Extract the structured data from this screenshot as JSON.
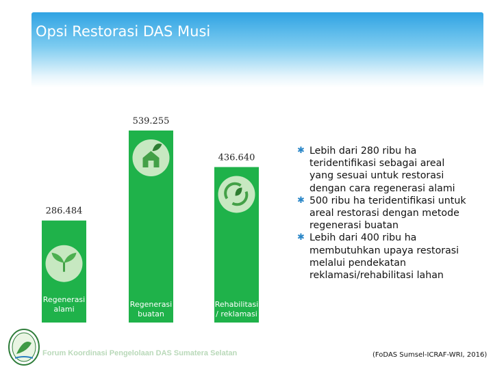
{
  "slide": {
    "title": "Opsi Restorasi DAS Musi",
    "footer_org": "Forum Koordinasi Pengelolaan DAS Sumatera Selatan",
    "source": "(FoDAS Sumsel-ICRAF-WRI, 2016)"
  },
  "bullets": [
    "Lebih dari 280 ribu ha teridentifikasi sebagai areal yang sesuai untuk restorasi dengan cara regenerasi alami",
    "500 ribu ha teridentifikasi untuk areal restorasi dengan metode regenerasi buatan",
    "Lebih dari 400 ribu ha membutuhkan upaya restorasi melalui pendekatan reklamasi/rehabilitasi lahan"
  ],
  "chart_data": {
    "type": "bar",
    "categories": [
      "Regenerasi alami",
      "Regenerasi buatan",
      "Rehabilitasi / reklamasi"
    ],
    "values": [
      286484,
      539255,
      436640
    ],
    "value_labels": [
      "286.484",
      "539.255",
      "436.640"
    ],
    "bar_color": "#1fb24a",
    "icons": [
      "seedling-icon",
      "house-leaf-icon",
      "recycle-leaf-icon"
    ],
    "grid": false,
    "legend": "none"
  }
}
